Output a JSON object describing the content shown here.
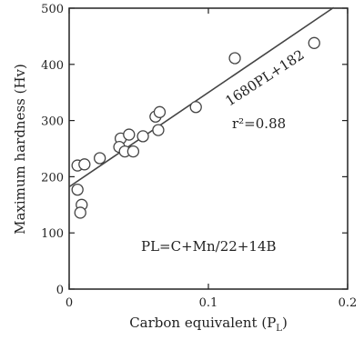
{
  "chart_data": {
    "type": "scatter",
    "title": "",
    "xlabel": "Carbon equivalent (P",
    "xlabel_sub": "L",
    "xlabel_close": ")",
    "ylabel": "Maximum hardness (Hv)",
    "xlim": [
      0,
      0.2
    ],
    "ylim": [
      0,
      500
    ],
    "x_ticks": [
      0,
      0.1,
      0.2
    ],
    "x_tick_labels": [
      "0",
      "0.1",
      "0.2"
    ],
    "y_ticks": [
      0,
      100,
      200,
      300,
      400,
      500
    ],
    "y_tick_labels": [
      "0",
      "100",
      "200",
      "300",
      "400",
      "500"
    ],
    "grid": false,
    "series": [
      {
        "points": [
          {
            "x": 0.006,
            "y": 220
          },
          {
            "x": 0.011,
            "y": 222
          },
          {
            "x": 0.006,
            "y": 177
          },
          {
            "x": 0.009,
            "y": 150
          },
          {
            "x": 0.008,
            "y": 136
          },
          {
            "x": 0.022,
            "y": 233
          },
          {
            "x": 0.037,
            "y": 268
          },
          {
            "x": 0.043,
            "y": 275
          },
          {
            "x": 0.036,
            "y": 253
          },
          {
            "x": 0.04,
            "y": 245
          },
          {
            "x": 0.046,
            "y": 245
          },
          {
            "x": 0.053,
            "y": 272
          },
          {
            "x": 0.062,
            "y": 307
          },
          {
            "x": 0.065,
            "y": 315
          },
          {
            "x": 0.064,
            "y": 283
          },
          {
            "x": 0.091,
            "y": 324
          },
          {
            "x": 0.119,
            "y": 411
          },
          {
            "x": 0.176,
            "y": 438
          }
        ]
      }
    ],
    "fit_line": {
      "slope": 1680,
      "intercept": 182,
      "x_range": [
        0,
        0.19
      ]
    },
    "annotations": {
      "fit_equation": "1680PL+182",
      "r_squared": "r²=0.88",
      "formula": "PL=C+Mn/22+14B"
    },
    "colors": {
      "axis": "#222222",
      "marker": "#444444",
      "line": "#444444"
    }
  }
}
